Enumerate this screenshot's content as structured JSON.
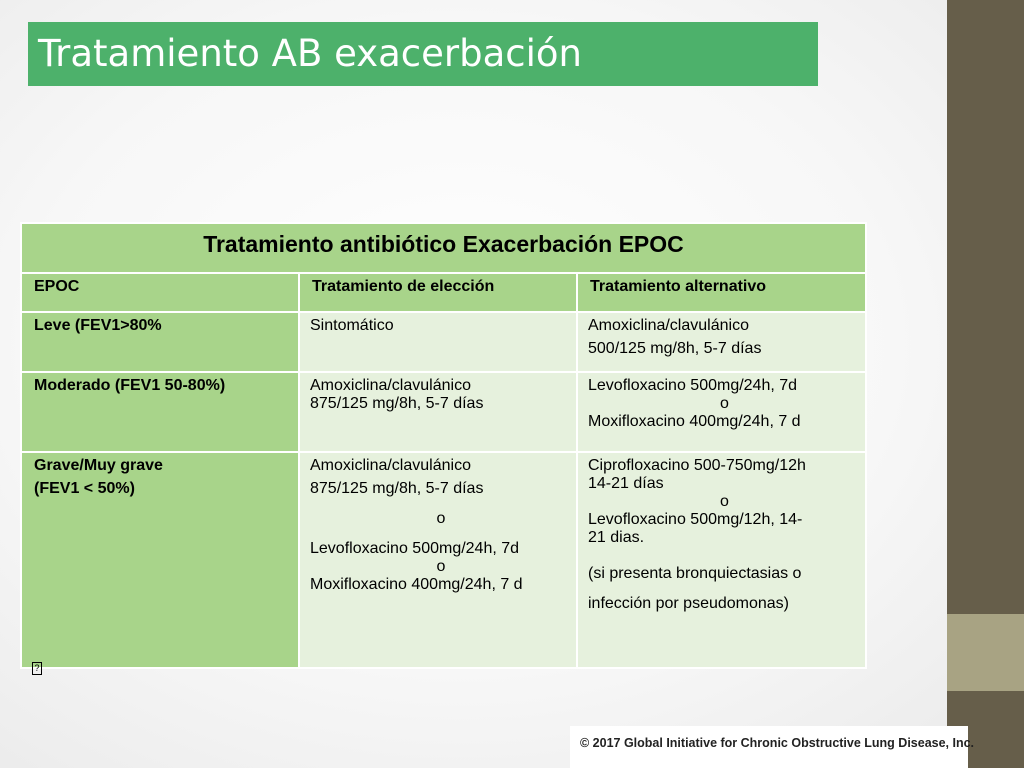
{
  "slide": {
    "title": "Tratamiento AB exacerbación",
    "copyright": "© 2017 Global Initiative for Chronic Obstructive Lung Disease, Inc.",
    "colors": {
      "title_bg": "#4db16b",
      "table_dark": "#a8d48a",
      "table_light": "#e6f1dd",
      "side_strip": "#665e4a",
      "side_strip_light": "#a8a383"
    },
    "icons": {
      "bullet_box": "placeholder-box-icon"
    }
  },
  "table": {
    "caption": "Tratamiento antibiótico Exacerbación EPOC",
    "headers": [
      "EPOC",
      "Tratamiento de elección",
      "Tratamiento alternativo"
    ],
    "rows": [
      {
        "epoc": [
          "Leve (FEV1>80%"
        ],
        "eleccion": [
          "Sintomático"
        ],
        "alternativo": [
          "Amoxiclina/clavulánico",
          "500/125 mg/8h, 5-7 días"
        ]
      },
      {
        "epoc": [
          "Moderado (FEV1 50-80%)"
        ],
        "eleccion": [
          "Amoxiclina/clavulánico",
          "875/125 mg/8h, 5-7 días"
        ],
        "alternativo": [
          "Levofloxacino 500mg/24h, 7d",
          "o",
          "Moxifloxacino 400mg/24h, 7 d"
        ]
      },
      {
        "epoc": [
          "Grave/Muy grave",
          "(FEV1 < 50%)"
        ],
        "eleccion": [
          "Amoxiclina/clavulánico",
          "875/125 mg/8h, 5-7 días",
          "o",
          "Levofloxacino 500mg/24h, 7d",
          "o",
          "Moxifloxacino 400mg/24h, 7 d"
        ],
        "alternativo": [
          "Ciprofloxacino 500-750mg/12h",
          "14-21 días",
          "o",
          "Levofloxacino 500mg/12h, 14-",
          "21 dias.",
          "(si presenta bronquiectasias o",
          "infección por pseudomonas)"
        ]
      }
    ]
  }
}
